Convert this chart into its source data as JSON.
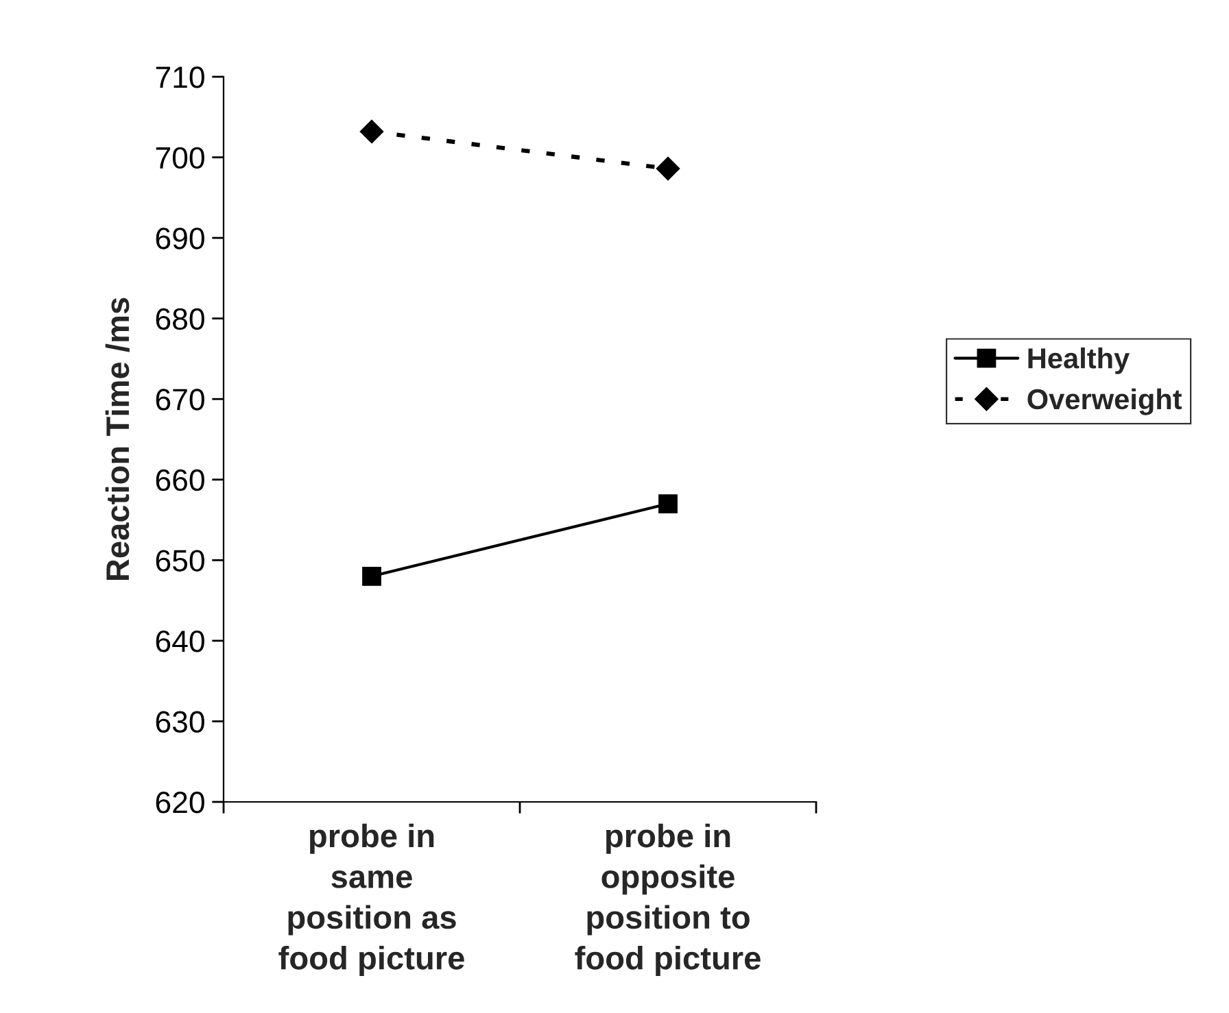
{
  "chart_data": {
    "type": "line",
    "ylabel": "Reaction Time /ms",
    "categories": [
      "probe in\nsame\nposition as\nfood picture",
      "probe in\nopposite\nposition to\nfood picture"
    ],
    "series": [
      {
        "name": "Healthy",
        "color": "#000000",
        "values": [
          648,
          657
        ],
        "marker": "square",
        "line_style": "solid"
      },
      {
        "name": "Overweight",
        "color": "#000000",
        "values": [
          703.2,
          698.6
        ],
        "marker": "diamond",
        "line_style": "dashed"
      }
    ],
    "ylim": [
      620,
      710
    ],
    "yticks": [
      620,
      630,
      640,
      650,
      660,
      670,
      680,
      690,
      700,
      710
    ],
    "grid": false,
    "legend": "right"
  }
}
